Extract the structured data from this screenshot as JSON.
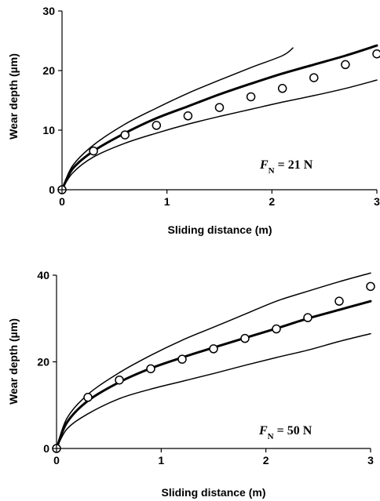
{
  "chart_data": [
    {
      "type": "line",
      "xlabel": "Sliding distance (m)",
      "ylabel": "Wear depth (µm)",
      "xlim": [
        0,
        3
      ],
      "ylim": [
        0,
        30
      ],
      "xticks": [
        "0",
        "1",
        "2",
        "3"
      ],
      "yticks": [
        "0",
        "10",
        "20",
        "30"
      ],
      "annotation": {
        "symbol": "F",
        "subscript": "N",
        "value": " = 21 N"
      },
      "series": [
        {
          "style": "thin",
          "x": [
            0,
            0.1,
            0.3,
            0.6,
            0.9,
            1.2,
            1.5,
            1.8,
            2.1,
            2.2
          ],
          "y": [
            0,
            4,
            7.5,
            11,
            13.7,
            16.2,
            18.4,
            20.5,
            22.5,
            23.8
          ]
        },
        {
          "style": "thick",
          "x": [
            0,
            0.1,
            0.3,
            0.6,
            0.9,
            1.2,
            1.5,
            1.8,
            2.1,
            2.4,
            2.7,
            3.0
          ],
          "y": [
            0,
            3.5,
            6.5,
            9.5,
            12,
            14,
            16,
            17.8,
            19.5,
            21,
            22.5,
            24.2
          ]
        },
        {
          "style": "thin",
          "x": [
            0,
            0.1,
            0.3,
            0.6,
            0.9,
            1.2,
            1.5,
            1.8,
            2.1,
            2.4,
            2.7,
            3.0
          ],
          "y": [
            0,
            2.8,
            5.5,
            7.8,
            9.5,
            11,
            12.3,
            13.5,
            14.7,
            15.8,
            17,
            18.4
          ]
        },
        {
          "style": "markers",
          "x": [
            0,
            0.3,
            0.6,
            0.9,
            1.2,
            1.5,
            1.8,
            2.1,
            2.4,
            2.7,
            3.0
          ],
          "y": [
            0,
            6.5,
            9.2,
            10.8,
            12.4,
            13.8,
            15.6,
            17.0,
            18.8,
            21.0,
            22.8
          ]
        }
      ]
    },
    {
      "type": "line",
      "xlabel": "Sliding distance (m)",
      "ylabel": "Wear depth (µm)",
      "xlim": [
        0,
        3
      ],
      "ylim": [
        0,
        40
      ],
      "xticks": [
        "0",
        "1",
        "2",
        "3"
      ],
      "yticks": [
        "0",
        "20",
        "40"
      ],
      "annotation": {
        "symbol": "F",
        "subscript": "N",
        "value": " = 50 N"
      },
      "series": [
        {
          "style": "thin",
          "x": [
            0,
            0.1,
            0.3,
            0.6,
            0.9,
            1.2,
            1.5,
            1.8,
            2.1,
            2.4,
            2.7,
            3.0
          ],
          "y": [
            0,
            7,
            12.5,
            17.5,
            21.5,
            25,
            28,
            31,
            34,
            36.3,
            38.5,
            40.5
          ]
        },
        {
          "style": "thick",
          "x": [
            0,
            0.1,
            0.3,
            0.6,
            0.9,
            1.2,
            1.5,
            1.8,
            2.1,
            2.4,
            2.7,
            3.0
          ],
          "y": [
            0,
            6,
            11,
            15.3,
            18.5,
            21,
            23.3,
            25.5,
            27.7,
            30,
            32,
            34
          ]
        },
        {
          "style": "thin",
          "x": [
            0,
            0.1,
            0.3,
            0.6,
            0.9,
            1.2,
            1.5,
            1.8,
            2.1,
            2.4,
            2.7,
            3.0
          ],
          "y": [
            0,
            4.5,
            8,
            11.5,
            13.7,
            15.5,
            17.3,
            19.2,
            21,
            22.7,
            24.7,
            26.5
          ]
        },
        {
          "style": "markers",
          "x": [
            0,
            0.3,
            0.6,
            0.9,
            1.2,
            1.5,
            1.8,
            2.1,
            2.4,
            2.7,
            3.0
          ],
          "y": [
            0,
            11.8,
            15.8,
            18.4,
            20.6,
            23.0,
            25.4,
            27.6,
            30.2,
            34.0,
            37.4
          ]
        }
      ]
    }
  ]
}
